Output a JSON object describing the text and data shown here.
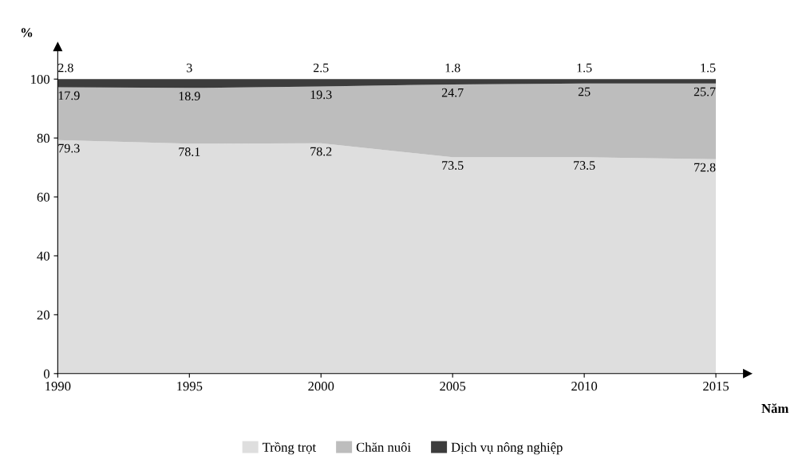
{
  "chart_data": {
    "type": "area",
    "stacked": true,
    "ylabel": "%",
    "xlabel": "Năm",
    "x": [
      1990,
      1995,
      2000,
      2005,
      2010,
      2015
    ],
    "series": [
      {
        "name": "Trồng trọt",
        "color": "#dedede",
        "values": [
          79.3,
          78.1,
          78.2,
          73.5,
          73.5,
          72.8
        ]
      },
      {
        "name": "Chăn nuôi",
        "color": "#bdbdbd",
        "values": [
          17.9,
          18.9,
          19.3,
          24.7,
          25,
          25.7
        ]
      },
      {
        "name": "Dịch vụ nông nghiệp",
        "color": "#3c3c3c",
        "values": [
          2.8,
          3,
          2.5,
          1.8,
          1.5,
          1.5
        ]
      }
    ],
    "xlim": [
      1990,
      2016.2
    ],
    "ylim": [
      0,
      111
    ],
    "xticks": [
      1990,
      1995,
      2000,
      2005,
      2010,
      2015
    ],
    "yticks": [
      0,
      20,
      40,
      60,
      80,
      100
    ],
    "data_labels": true,
    "legend": "bottom"
  }
}
